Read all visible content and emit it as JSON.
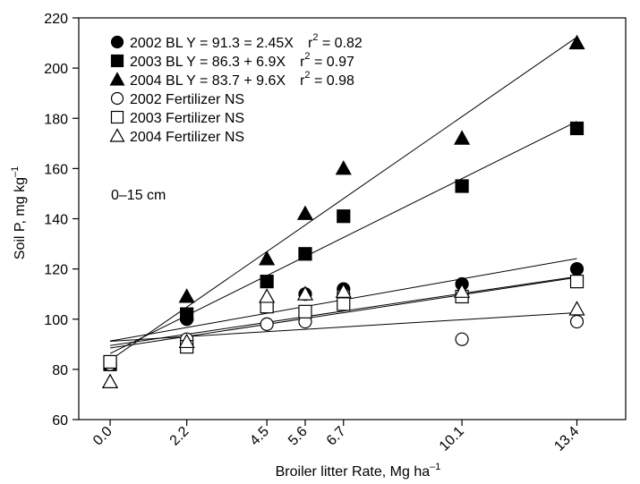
{
  "chart_data": {
    "type": "scatter",
    "xlabel": "Broiler litter Rate, Mg ha",
    "xlabel_sup": "–1",
    "ylabel": "Soil P, mg kg",
    "ylabel_sup": "–1",
    "annotation": "0–15 cm",
    "x_ticks": [
      0.0,
      2.2,
      4.5,
      5.6,
      6.7,
      10.1,
      13.4
    ],
    "x_tick_labels": [
      "0.0",
      "2.2",
      "4.5",
      "5.6",
      "6.7",
      "10.1",
      "13.4"
    ],
    "y_ticks": [
      60,
      80,
      100,
      120,
      140,
      160,
      180,
      200,
      220
    ],
    "y_tick_labels": [
      "60",
      "80",
      "100",
      "120",
      "140",
      "160",
      "180",
      "200",
      "220"
    ],
    "xlim": [
      -0.9,
      14.8
    ],
    "ylim": [
      60,
      220
    ],
    "grid": false,
    "legend_position": "top-left",
    "series": [
      {
        "name": "2002 BL",
        "marker": "filled-circle",
        "legend_label": "2002 BL Y = 91.3 = 2.45X",
        "legend_r2": "r",
        "legend_r2_sup": "2",
        "legend_r2_val": " = 0.82",
        "x": [
          0.0,
          2.2,
          4.5,
          5.6,
          6.7,
          10.1,
          13.4
        ],
        "y": [
          82,
          100,
          105,
          110,
          112,
          114,
          120
        ],
        "fit": [
          91.3,
          2.45
        ]
      },
      {
        "name": "2003 BL",
        "marker": "filled-square",
        "legend_label": "2003 BL Y = 86.3 + 6.9X",
        "legend_r2": "r",
        "legend_r2_sup": "2",
        "legend_r2_val": " = 0.97",
        "x": [
          0.0,
          2.2,
          4.5,
          5.6,
          6.7,
          10.1,
          13.4
        ],
        "y": [
          82,
          102,
          115,
          126,
          141,
          153,
          176
        ],
        "fit": [
          86.3,
          6.9
        ]
      },
      {
        "name": "2004 BL",
        "marker": "filled-triangle",
        "legend_label": "2004 BL Y = 83.7 + 9.6X",
        "legend_r2": "r",
        "legend_r2_sup": "2",
        "legend_r2_val": " = 0.98",
        "x": [
          0.0,
          2.2,
          4.5,
          5.6,
          6.7,
          10.1,
          13.4
        ],
        "y": [
          75,
          109,
          124,
          142,
          160,
          172,
          210
        ],
        "fit": [
          83.7,
          9.6
        ]
      },
      {
        "name": "2002 Fertilizer NS",
        "marker": "open-circle",
        "legend_label": "2002 Fertilizer NS",
        "x": [
          0.0,
          2.2,
          4.5,
          5.6,
          6.7,
          10.1,
          13.4
        ],
        "y": [
          82,
          92,
          98,
          99,
          110,
          92,
          99
        ],
        "fit": [
          91.2,
          0.85
        ]
      },
      {
        "name": "2003 Fertilizer NS",
        "marker": "open-square",
        "legend_label": "2003 Fertilizer NS",
        "x": [
          0.0,
          2.2,
          4.5,
          5.6,
          6.7,
          10.1,
          13.4
        ],
        "y": [
          83,
          89,
          105,
          103,
          106,
          109,
          115
        ],
        "fit": [
          88.5,
          2.1
        ]
      },
      {
        "name": "2004 Fertilizer NS",
        "marker": "open-triangle",
        "legend_label": "2004 Fertilizer NS",
        "x": [
          0.0,
          2.2,
          4.5,
          5.6,
          6.7,
          10.1,
          13.4
        ],
        "y": [
          75,
          91,
          109,
          110,
          111,
          111,
          104
        ],
        "fit": [
          89.5,
          2.05
        ]
      }
    ]
  }
}
